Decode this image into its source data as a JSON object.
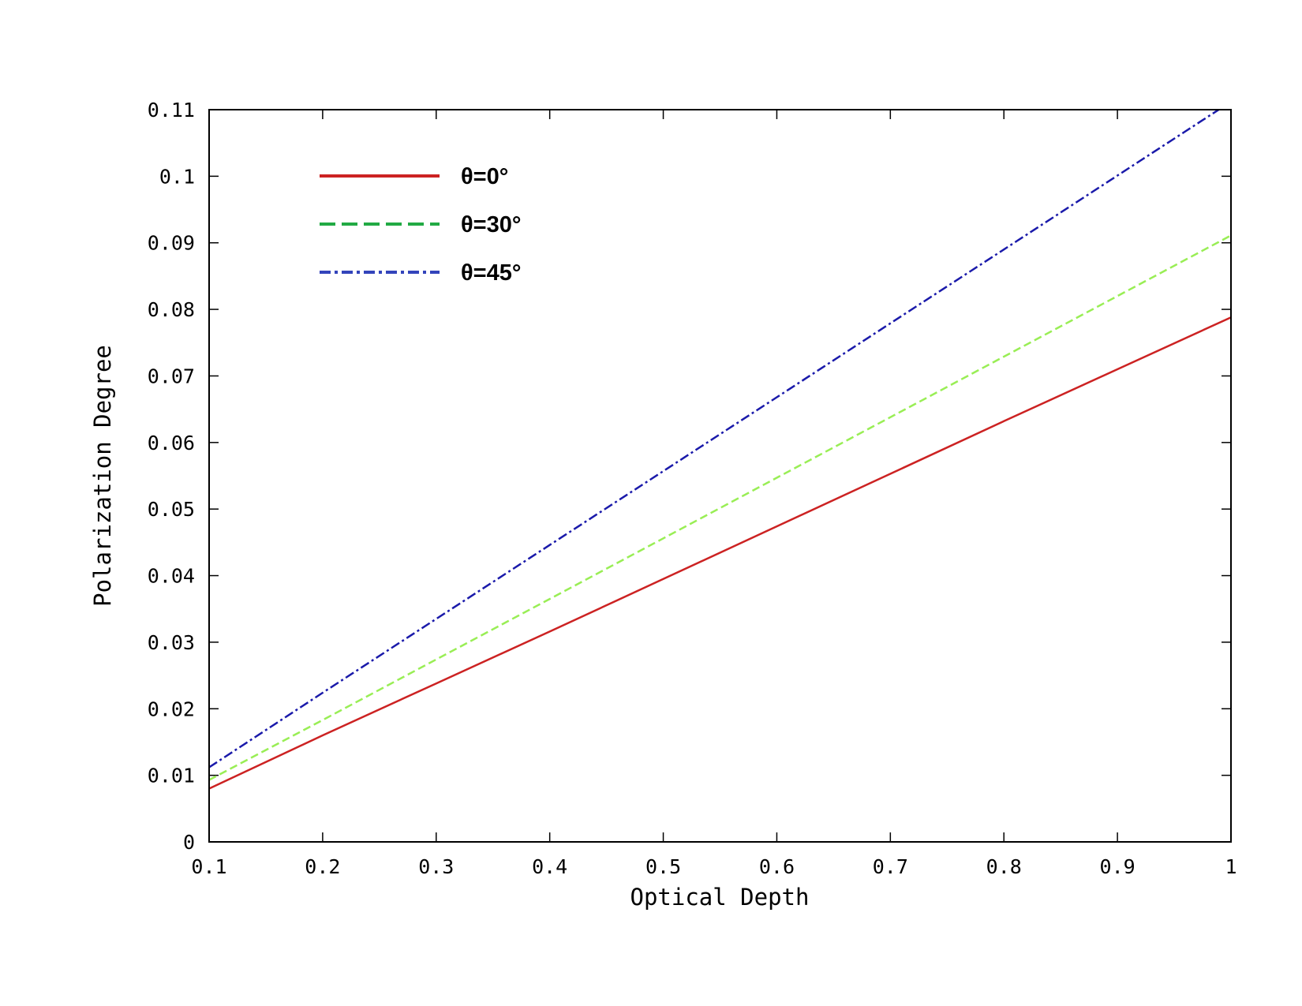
{
  "chart_data": {
    "type": "line",
    "title": "",
    "xlabel": "Optical Depth",
    "ylabel": "Polarization Degree",
    "xlim": [
      0.1,
      1
    ],
    "ylim": [
      0,
      0.11
    ],
    "xticks": [
      0.1,
      0.2,
      0.3,
      0.4,
      0.5,
      0.6,
      0.7,
      0.8,
      0.9,
      1
    ],
    "xtick_labels": [
      "0.1",
      "0.2",
      "0.3",
      "0.4",
      "0.5",
      "0.6",
      "0.7",
      "0.8",
      "0.9",
      "1"
    ],
    "yticks": [
      0,
      0.01,
      0.02,
      0.03,
      0.04,
      0.05,
      0.06,
      0.07,
      0.08,
      0.09,
      0.1,
      0.11
    ],
    "ytick_labels": [
      "0",
      "0.01",
      "0.02",
      "0.03",
      "0.04",
      "0.05",
      "0.06",
      "0.07",
      "0.08",
      "0.09",
      "0.1",
      "0.11"
    ],
    "grid": false,
    "legend_position": "top-left",
    "series": [
      {
        "name": "θ=0°",
        "style": "solid",
        "color": "#cc2222",
        "legend_color": "#cc2222",
        "x": [
          0.1,
          0.2,
          0.3,
          0.4,
          0.5,
          0.6,
          0.7,
          0.8,
          0.9,
          1.0
        ],
        "y": [
          0.008,
          0.016,
          0.0238,
          0.0316,
          0.0395,
          0.0474,
          0.0553,
          0.0632,
          0.071,
          0.0788
        ]
      },
      {
        "name": "θ=30°",
        "style": "dashed",
        "color": "#99ee55",
        "legend_color": "#22aa44",
        "x": [
          0.1,
          0.2,
          0.3,
          0.4,
          0.5,
          0.6,
          0.7,
          0.8,
          0.9,
          1.0
        ],
        "y": [
          0.0093,
          0.0183,
          0.0274,
          0.0365,
          0.0456,
          0.0547,
          0.0638,
          0.0729,
          0.082,
          0.0911
        ]
      },
      {
        "name": "θ=45°",
        "style": "dashdot",
        "color": "#1a1aaa",
        "legend_color": "#3344bb",
        "x": [
          0.1,
          0.2,
          0.3,
          0.4,
          0.5,
          0.6,
          0.7,
          0.8,
          0.9,
          1.0
        ],
        "y": [
          0.0112,
          0.0224,
          0.0335,
          0.0446,
          0.0557,
          0.0668,
          0.0779,
          0.089,
          0.1001,
          0.1112
        ]
      }
    ]
  }
}
